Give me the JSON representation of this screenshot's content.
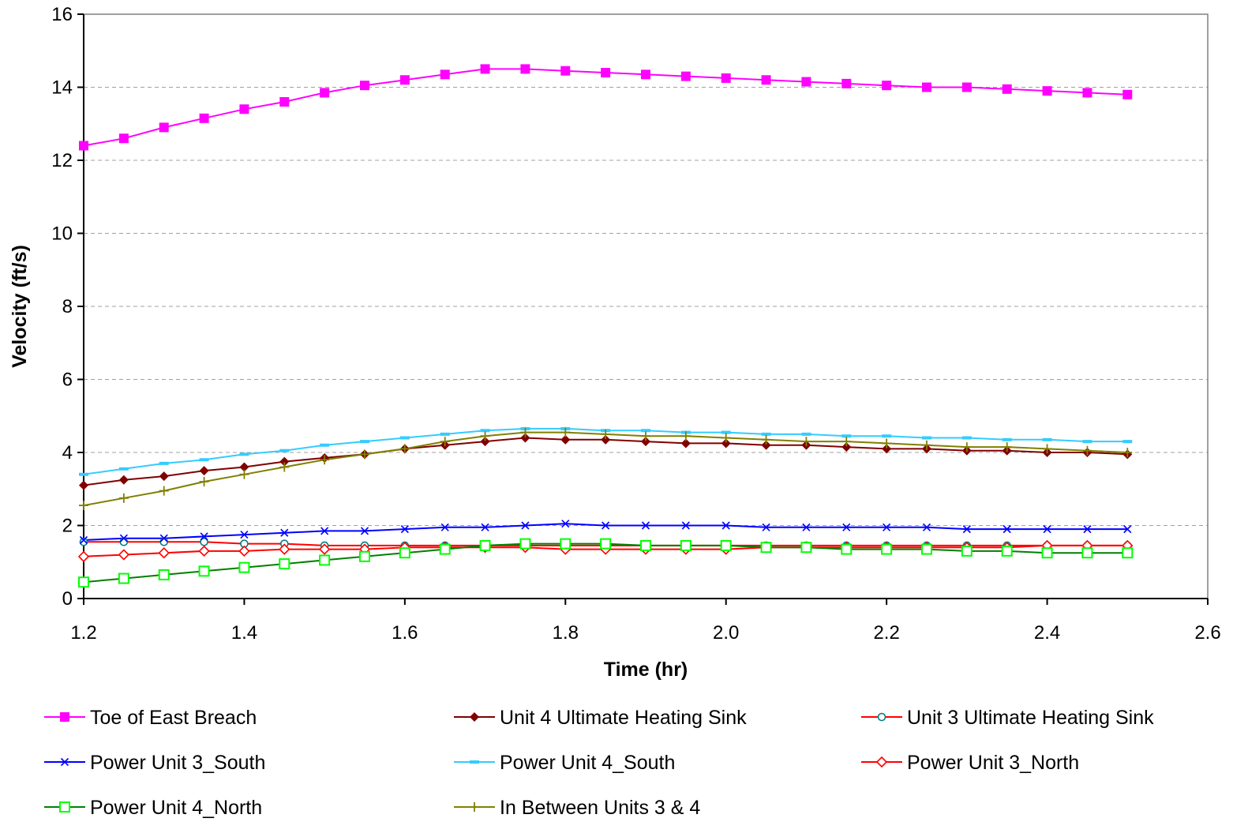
{
  "chart_data": {
    "type": "line",
    "title": "",
    "xlabel": "Time (hr)",
    "ylabel": "Velocity (ft/s)",
    "xlim": [
      1.2,
      2.6
    ],
    "ylim": [
      0,
      16
    ],
    "xticks": [
      "1.2",
      "1.4",
      "1.6",
      "1.8",
      "2.0",
      "2.2",
      "2.4",
      "2.6"
    ],
    "yticks": [
      "0",
      "2",
      "4",
      "6",
      "8",
      "10",
      "12",
      "14",
      "16"
    ],
    "grid": "horizontal dashed",
    "legend_position": "bottom",
    "x": [
      1.2,
      1.25,
      1.3,
      1.35,
      1.4,
      1.45,
      1.5,
      1.55,
      1.6,
      1.65,
      1.7,
      1.75,
      1.8,
      1.85,
      1.9,
      1.95,
      2.0,
      2.05,
      2.1,
      2.15,
      2.2,
      2.25,
      2.3,
      2.35,
      2.4,
      2.45,
      2.5
    ],
    "series": [
      {
        "name": "Toe of East Breach",
        "color": "#FF00FF",
        "marker": "square-filled",
        "values": [
          12.4,
          12.6,
          12.9,
          13.15,
          13.4,
          13.6,
          13.85,
          14.05,
          14.2,
          14.35,
          14.5,
          14.5,
          14.45,
          14.4,
          14.35,
          14.3,
          14.25,
          14.2,
          14.15,
          14.1,
          14.05,
          14.0,
          14.0,
          13.95,
          13.9,
          13.85,
          13.8
        ]
      },
      {
        "name": "Unit 4 Ultimate Heating Sink",
        "color": "#800000",
        "marker": "diamond-filled",
        "values": [
          3.1,
          3.25,
          3.35,
          3.5,
          3.6,
          3.75,
          3.85,
          3.95,
          4.1,
          4.2,
          4.3,
          4.4,
          4.35,
          4.35,
          4.3,
          4.25,
          4.25,
          4.2,
          4.2,
          4.15,
          4.1,
          4.1,
          4.05,
          4.05,
          4.0,
          4.0,
          3.95
        ]
      },
      {
        "name": "Unit 3 Ultimate Heating Sink",
        "color": "#008080",
        "line_color": "#FF0000",
        "marker": "circle-open",
        "values": [
          1.55,
          1.55,
          1.55,
          1.55,
          1.5,
          1.5,
          1.45,
          1.45,
          1.45,
          1.45,
          1.45,
          1.45,
          1.45,
          1.45,
          1.45,
          1.45,
          1.45,
          1.45,
          1.45,
          1.45,
          1.45,
          1.45,
          1.45,
          1.45,
          1.45,
          1.45,
          1.45
        ]
      },
      {
        "name": "Power Unit 3_South",
        "color": "#0000FF",
        "marker": "x",
        "values": [
          1.6,
          1.65,
          1.65,
          1.7,
          1.75,
          1.8,
          1.85,
          1.85,
          1.9,
          1.95,
          1.95,
          2.0,
          2.05,
          2.0,
          2.0,
          2.0,
          2.0,
          1.95,
          1.95,
          1.95,
          1.95,
          1.95,
          1.9,
          1.9,
          1.9,
          1.9,
          1.9
        ]
      },
      {
        "name": "Power Unit 4_South",
        "color": "#33CCFF",
        "marker": "dash",
        "values": [
          3.4,
          3.55,
          3.7,
          3.8,
          3.95,
          4.05,
          4.2,
          4.3,
          4.4,
          4.5,
          4.6,
          4.65,
          4.65,
          4.6,
          4.6,
          4.55,
          4.55,
          4.5,
          4.5,
          4.45,
          4.45,
          4.4,
          4.4,
          4.35,
          4.35,
          4.3,
          4.3
        ]
      },
      {
        "name": "Power Unit 3_North",
        "color": "#FF0000",
        "marker": "diamond-open",
        "values": [
          1.15,
          1.2,
          1.25,
          1.3,
          1.3,
          1.35,
          1.35,
          1.35,
          1.4,
          1.4,
          1.4,
          1.4,
          1.35,
          1.35,
          1.35,
          1.35,
          1.35,
          1.4,
          1.4,
          1.4,
          1.4,
          1.4,
          1.4,
          1.4,
          1.45,
          1.45,
          1.45
        ]
      },
      {
        "name": "Power Unit 4_North",
        "color": "#008000",
        "marker_color": "#00FF00",
        "marker": "square-open",
        "values": [
          0.45,
          0.55,
          0.65,
          0.75,
          0.85,
          0.95,
          1.05,
          1.15,
          1.25,
          1.35,
          1.45,
          1.5,
          1.5,
          1.5,
          1.45,
          1.45,
          1.45,
          1.4,
          1.4,
          1.35,
          1.35,
          1.35,
          1.3,
          1.3,
          1.25,
          1.25,
          1.25
        ]
      },
      {
        "name": "In Between Units 3 & 4",
        "color": "#808000",
        "marker": "plus",
        "values": [
          2.55,
          2.75,
          2.95,
          3.2,
          3.4,
          3.6,
          3.8,
          3.95,
          4.1,
          4.3,
          4.45,
          4.55,
          4.55,
          4.5,
          4.45,
          4.45,
          4.4,
          4.35,
          4.3,
          4.3,
          4.25,
          4.2,
          4.15,
          4.15,
          4.1,
          4.05,
          4.0
        ]
      }
    ]
  }
}
